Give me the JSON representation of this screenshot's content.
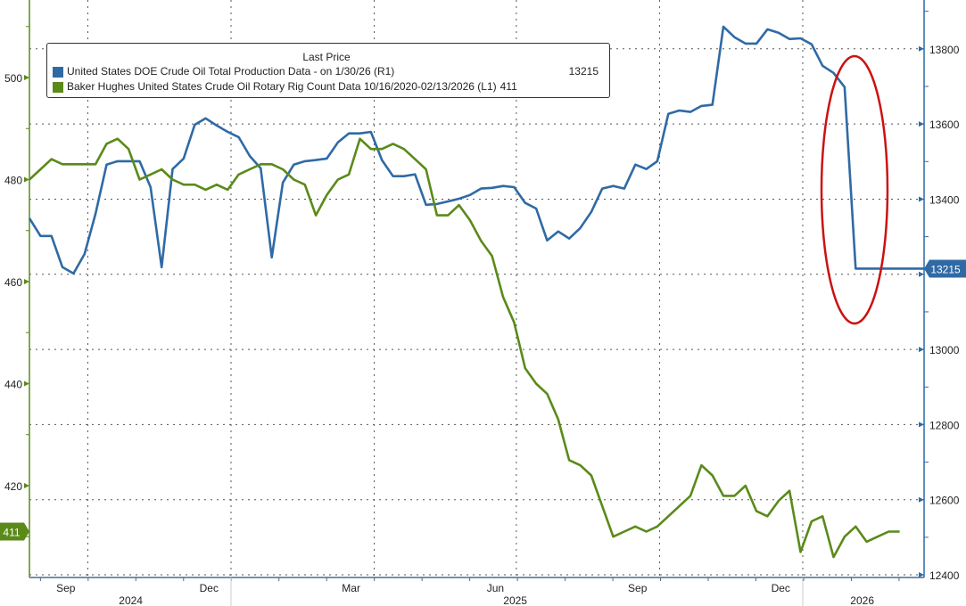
{
  "chart_data": {
    "type": "line",
    "title": "Last Price",
    "x_unit": "week index (weekly, Aug 2024 - Feb 2026)",
    "x_ticks": [
      {
        "label": "Sep",
        "week": 3.3
      },
      {
        "label": "Dec",
        "week": 16.3
      },
      {
        "label": "Mar",
        "week": 29.2
      },
      {
        "label": "Jun",
        "week": 42.3
      },
      {
        "label": "Sep",
        "week": 55.2
      },
      {
        "label": "Dec",
        "week": 68.2
      }
    ],
    "year_labels": [
      {
        "label": "2024",
        "week": 9.2
      },
      {
        "label": "2025",
        "week": 44.1
      },
      {
        "label": "2026",
        "week": 75.6
      }
    ],
    "year_breaks": [
      18.3,
      70.2
    ],
    "quarter_gridlines": [
      5.3,
      18.3,
      31.3,
      44.2,
      57.2,
      70.2
    ],
    "left_axis": {
      "ylim": [
        402,
        515.2
      ],
      "ticks": [
        420,
        440,
        460,
        480,
        500
      ],
      "color": "#5a8a1a"
    },
    "right_axis": {
      "ylim": [
        12393,
        13930
      ],
      "ticks": [
        12400,
        12600,
        12800,
        13000,
        13200,
        13400,
        13600,
        13800
      ],
      "color": "#2f6aa5"
    },
    "series": [
      {
        "name": "United States DOE Crude Oil Total Production Data -  on 1/30/26  (R1)",
        "last_value": "13215",
        "axis": "right",
        "color": "#2f6aa5",
        "values": [
          13349,
          13302,
          13302,
          13219,
          13202,
          13254,
          13361,
          13492,
          13501,
          13501,
          13501,
          13432,
          13219,
          13480,
          13508,
          13598,
          13615,
          13596,
          13579,
          13565,
          13515,
          13482,
          13245,
          13444,
          13492,
          13501,
          13504,
          13508,
          13551,
          13575,
          13575,
          13579,
          13504,
          13461,
          13461,
          13466,
          13385,
          13387,
          13394,
          13401,
          13411,
          13428,
          13430,
          13435,
          13432,
          13390,
          13375,
          13290,
          13314,
          13295,
          13323,
          13366,
          13428,
          13435,
          13428,
          13492,
          13480,
          13501,
          13627,
          13636,
          13632,
          13648,
          13651,
          13859,
          13831,
          13814,
          13814,
          13852,
          13843,
          13826,
          13828,
          13812,
          13755,
          13736,
          13698,
          13215,
          13215,
          13215,
          13215,
          13215,
          13215
        ]
      },
      {
        "name": "Baker Hughes United States Crude Oil Rotary Rig Count Data 10/16/2020-02/13/2026",
        "axis_tag": "(L1)",
        "last_value": "411",
        "axis": "left",
        "color": "#5a8a1a",
        "values": [
          480,
          482,
          484,
          483,
          483,
          483,
          483,
          487,
          488,
          486,
          480,
          481,
          482,
          480,
          479,
          479,
          478,
          479,
          478,
          481,
          482,
          483,
          483,
          482,
          480,
          479,
          473,
          477,
          480,
          481,
          488,
          486,
          486,
          487,
          486,
          484,
          482,
          473,
          473,
          475,
          472,
          468,
          465,
          457,
          452,
          443,
          440,
          438,
          433,
          425,
          424,
          422,
          416,
          410,
          411,
          412,
          411,
          412,
          414,
          416,
          418,
          424,
          422,
          418,
          418,
          420,
          415,
          414,
          417,
          419,
          407,
          413,
          414,
          406,
          410,
          412,
          409,
          410,
          411,
          411
        ]
      }
    ],
    "annotation": {
      "type": "ellipse",
      "color": "#cc1111",
      "around": "production drop, weeks 73-79"
    },
    "grid": true,
    "legend_placement": "top-left"
  },
  "legend": {
    "title": "Last Price",
    "items": [
      {
        "label": "United States DOE Crude Oil Total Production Data -  on 1/30/26  (R1)",
        "value": "13215",
        "color": "#2f6aa5"
      },
      {
        "label": "Baker Hughes United States Crude Oil Rotary Rig Count Data 10/16/2020-02/13/2026   (L1)",
        "value": "411",
        "color": "#5a8a1a"
      }
    ]
  }
}
